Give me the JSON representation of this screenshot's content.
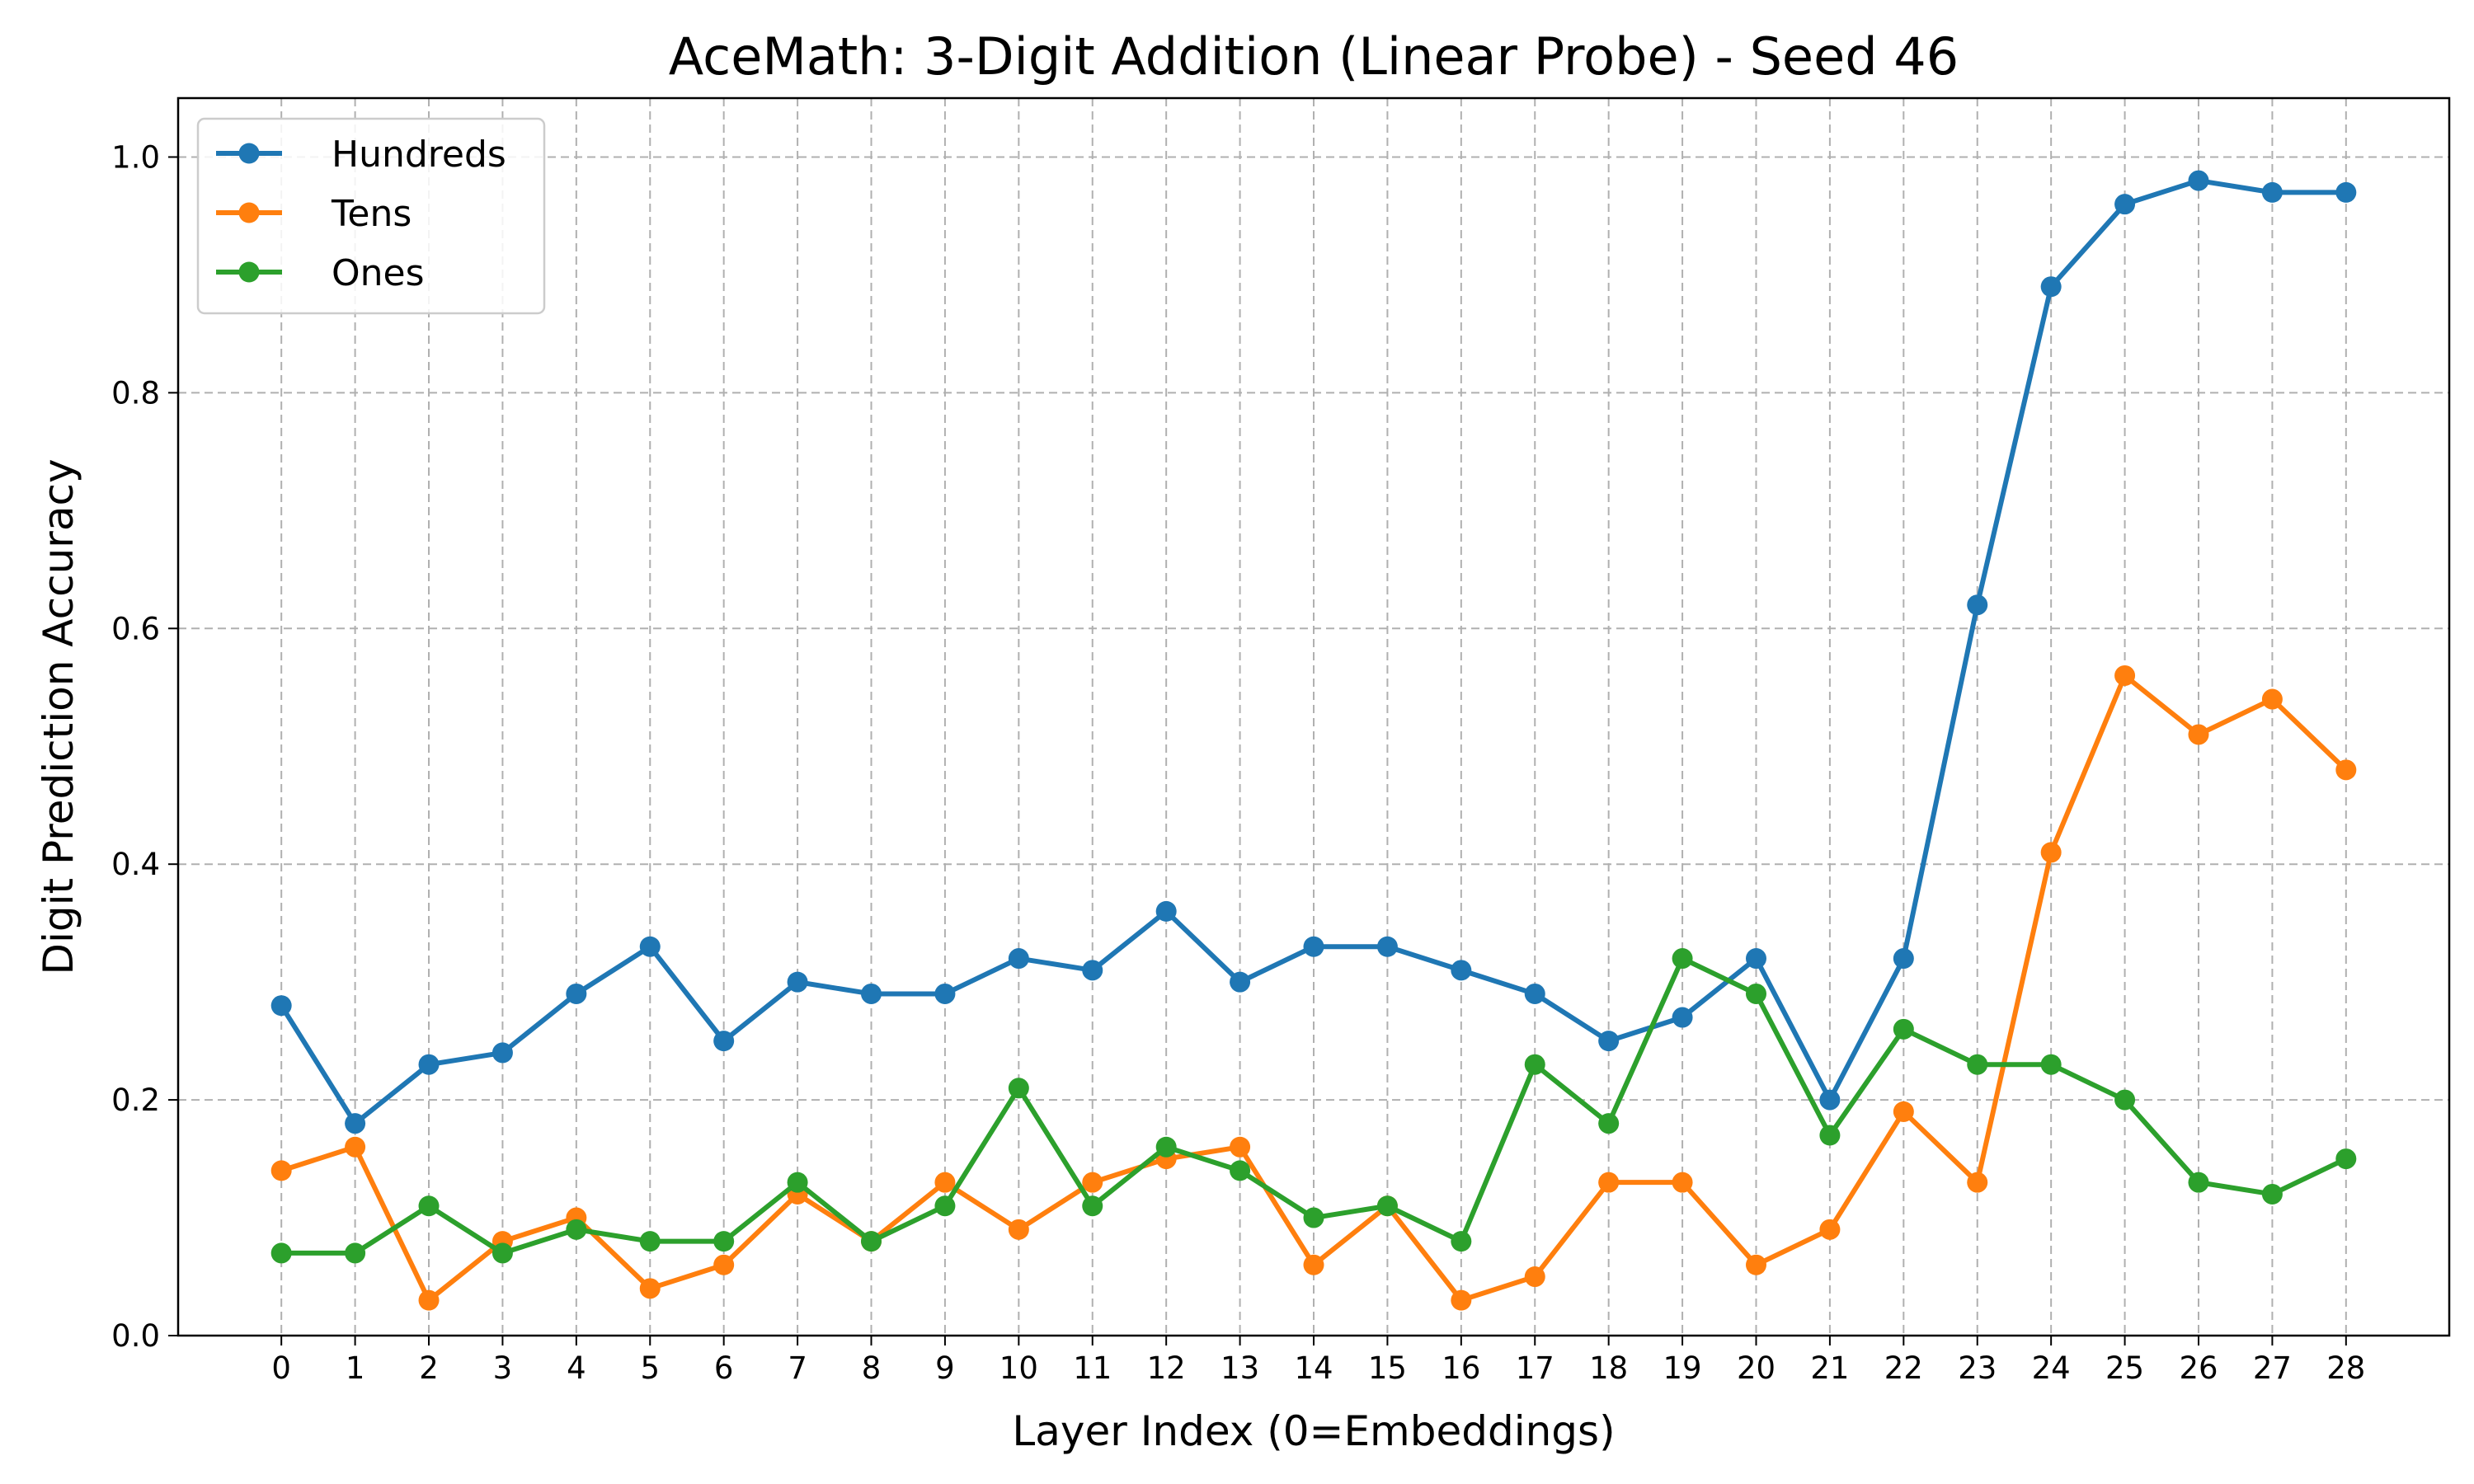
{
  "chart_data": {
    "type": "line",
    "title": "AceMath: 3-Digit Addition (Linear Probe) - Seed 46",
    "xlabel": "Layer Index (0=Embeddings)",
    "ylabel": "Digit Prediction Accuracy",
    "x": [
      0,
      1,
      2,
      3,
      4,
      5,
      6,
      7,
      8,
      9,
      10,
      11,
      12,
      13,
      14,
      15,
      16,
      17,
      18,
      19,
      20,
      21,
      22,
      23,
      24,
      25,
      26,
      27,
      28
    ],
    "xlim": [
      -1.4,
      29.4
    ],
    "ylim": [
      0,
      1.05
    ],
    "yticks": [
      "0.0",
      "0.2",
      "0.4",
      "0.6",
      "0.8",
      "1.0"
    ],
    "grid": true,
    "legend_position": "top-left",
    "series": [
      {
        "name": "Hundreds",
        "color": "#1f77b4",
        "values": [
          0.28,
          0.18,
          0.23,
          0.24,
          0.29,
          0.33,
          0.25,
          0.3,
          0.29,
          0.29,
          0.32,
          0.31,
          0.36,
          0.3,
          0.33,
          0.33,
          0.31,
          0.29,
          0.25,
          0.27,
          0.32,
          0.2,
          0.32,
          0.62,
          0.89,
          0.96,
          0.98,
          0.97,
          0.97
        ]
      },
      {
        "name": "Tens",
        "color": "#ff7f0e",
        "values": [
          0.14,
          0.16,
          0.03,
          0.08,
          0.1,
          0.04,
          0.06,
          0.12,
          0.08,
          0.13,
          0.09,
          0.13,
          0.15,
          0.16,
          0.06,
          0.11,
          0.03,
          0.05,
          0.13,
          0.13,
          0.06,
          0.09,
          0.19,
          0.13,
          0.41,
          0.56,
          0.51,
          0.54,
          0.48
        ]
      },
      {
        "name": "Ones",
        "color": "#2ca02c",
        "values": [
          0.07,
          0.07,
          0.11,
          0.07,
          0.09,
          0.08,
          0.08,
          0.13,
          0.08,
          0.11,
          0.21,
          0.11,
          0.16,
          0.14,
          0.1,
          0.11,
          0.08,
          0.23,
          0.18,
          0.32,
          0.29,
          0.17,
          0.26,
          0.23,
          0.23,
          0.2,
          0.13,
          0.12,
          0.15
        ]
      }
    ]
  }
}
